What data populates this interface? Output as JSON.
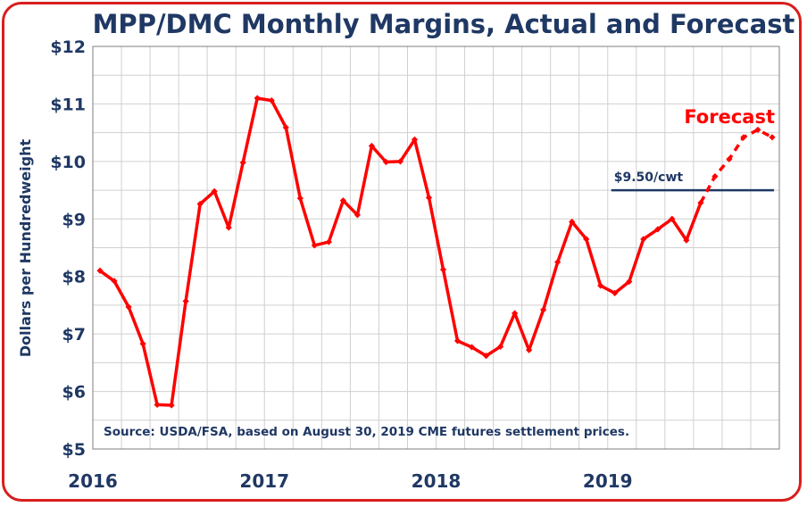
{
  "chart_data": {
    "type": "line",
    "title": "MPP/DMC Monthly Margins, Actual and Forecast",
    "ylabel": "Dollars per Hundredweight",
    "ylim": [
      5,
      12
    ],
    "yticks": [
      "$5",
      "$6",
      "$7",
      "$8",
      "$9",
      "$10",
      "$11",
      "$12"
    ],
    "year_labels": [
      "2016",
      "2017",
      "2018",
      "2019"
    ],
    "grid": true,
    "source_note": "Source:  USDA/FSA, based on August 30, 2019 CME futures settlement prices.",
    "reference_line": {
      "label": "$9.50/cwt",
      "value": 9.5,
      "from": "2019-01",
      "to": "2019-12"
    },
    "forecast_label": "Forecast",
    "series": [
      {
        "kind": "actual",
        "color": "#ff0000",
        "x": [
          "2016-01",
          "2016-02",
          "2016-03",
          "2016-04",
          "2016-05",
          "2016-06",
          "2016-07",
          "2016-08",
          "2016-09",
          "2016-10",
          "2016-11",
          "2016-12",
          "2017-01",
          "2017-02",
          "2017-03",
          "2017-04",
          "2017-05",
          "2017-06",
          "2017-07",
          "2017-08",
          "2017-09",
          "2017-10",
          "2017-11",
          "2017-12",
          "2018-01",
          "2018-02",
          "2018-03",
          "2018-04",
          "2018-05",
          "2018-06",
          "2018-07",
          "2018-08",
          "2018-09",
          "2018-10",
          "2018-11",
          "2018-12",
          "2019-01",
          "2019-02",
          "2019-03",
          "2019-04",
          "2019-05",
          "2019-06",
          "2019-07"
        ],
        "values": [
          8.1,
          7.92,
          7.47,
          6.83,
          5.77,
          5.76,
          7.57,
          9.26,
          9.48,
          8.85,
          9.98,
          11.1,
          11.06,
          10.59,
          9.36,
          8.54,
          8.6,
          9.32,
          9.07,
          10.27,
          9.99,
          10.0,
          10.38,
          9.37,
          8.12,
          6.88,
          6.77,
          6.62,
          6.78,
          7.36,
          6.72,
          7.42,
          8.25,
          8.95,
          8.65,
          7.84,
          7.71,
          7.91,
          8.65,
          8.82,
          9.0,
          8.63,
          9.28
        ]
      },
      {
        "kind": "forecast",
        "color": "#ff0000",
        "x": [
          "2019-07",
          "2019-08",
          "2019-09",
          "2019-10",
          "2019-11",
          "2019-12"
        ],
        "values": [
          9.28,
          9.74,
          10.04,
          10.42,
          10.55,
          10.42
        ]
      }
    ]
  }
}
